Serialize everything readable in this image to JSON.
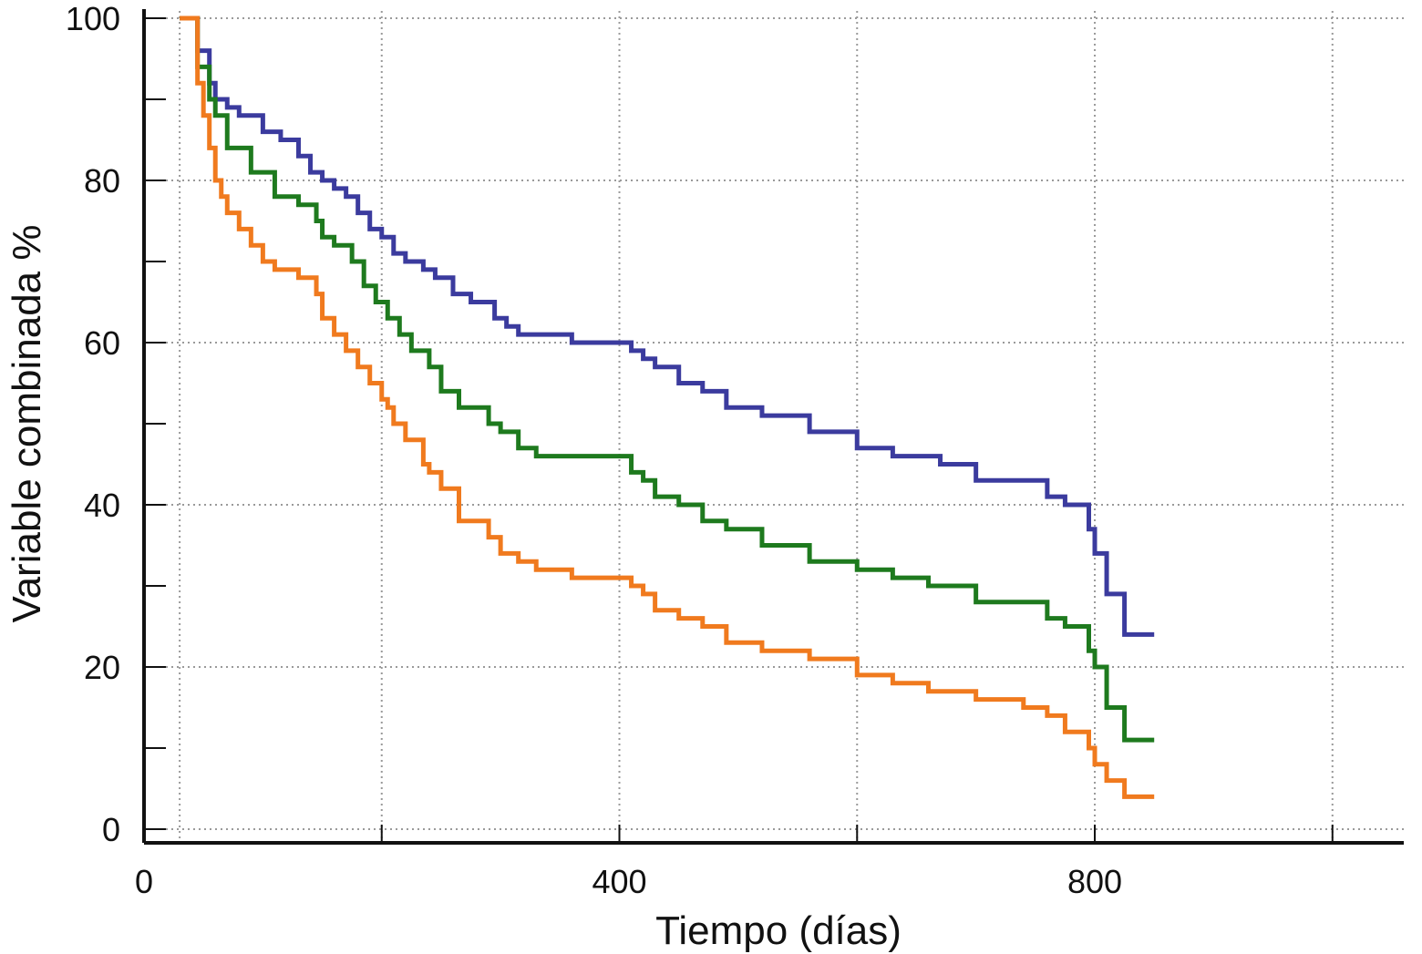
{
  "chart_data": {
    "type": "line",
    "step": true,
    "xlabel": "Tiempo (días)",
    "ylabel": "Variable combinada %",
    "xlim": [
      0,
      1060
    ],
    "ylim": [
      0,
      100
    ],
    "x_ticks": [
      0,
      400,
      800
    ],
    "x_tick_labels": [
      "0",
      "400",
      "800"
    ],
    "x_minor_ticks": [
      200,
      600,
      1000
    ],
    "x_gridlines": [
      30,
      200,
      400,
      600,
      800,
      1000
    ],
    "y_ticks": [
      0,
      20,
      40,
      60,
      80,
      100
    ],
    "y_tick_labels": [
      "0",
      "20",
      "40",
      "60",
      "80",
      "100"
    ],
    "y_minor_ticks": [
      10,
      30,
      50,
      70,
      90
    ],
    "grid": true,
    "legend": "none",
    "colors": [
      "#3b3b9e",
      "#1e7a1e",
      "#f07a1e"
    ],
    "series": [
      {
        "color": "#3b3b9e",
        "x": [
          30,
          45,
          55,
          60,
          70,
          80,
          100,
          115,
          130,
          140,
          150,
          160,
          170,
          180,
          190,
          200,
          210,
          220,
          235,
          245,
          260,
          275,
          295,
          305,
          315,
          330,
          360,
          400,
          410,
          420,
          430,
          450,
          470,
          490,
          520,
          560,
          600,
          630,
          670,
          700,
          740,
          760,
          775,
          795,
          800,
          810,
          825,
          850
        ],
        "y": [
          100,
          96,
          92,
          90,
          89,
          88,
          86,
          85,
          83,
          81,
          80,
          79,
          78,
          76,
          74,
          73,
          71,
          70,
          69,
          68,
          66,
          65,
          63,
          62,
          61,
          61,
          60,
          60,
          59,
          58,
          57,
          55,
          54,
          52,
          51,
          49,
          47,
          46,
          45,
          43,
          43,
          41,
          40,
          37,
          34,
          29,
          24,
          24
        ]
      },
      {
        "color": "#1e7a1e",
        "x": [
          30,
          45,
          55,
          60,
          70,
          90,
          110,
          130,
          145,
          150,
          160,
          175,
          185,
          195,
          205,
          215,
          225,
          240,
          250,
          265,
          290,
          300,
          315,
          330,
          360,
          400,
          410,
          420,
          430,
          450,
          470,
          490,
          520,
          560,
          600,
          630,
          660,
          700,
          740,
          760,
          775,
          795,
          800,
          810,
          825,
          850
        ],
        "y": [
          100,
          94,
          90,
          88,
          84,
          81,
          78,
          77,
          75,
          73,
          72,
          70,
          67,
          65,
          63,
          61,
          59,
          57,
          54,
          52,
          50,
          49,
          47,
          46,
          46,
          46,
          44,
          43,
          41,
          40,
          38,
          37,
          35,
          33,
          32,
          31,
          30,
          28,
          28,
          26,
          25,
          22,
          20,
          15,
          11,
          11
        ]
      },
      {
        "color": "#f07a1e",
        "x": [
          30,
          45,
          50,
          55,
          60,
          65,
          70,
          80,
          90,
          100,
          110,
          130,
          145,
          150,
          160,
          170,
          180,
          190,
          200,
          205,
          210,
          220,
          235,
          240,
          250,
          265,
          290,
          300,
          315,
          330,
          360,
          400,
          410,
          420,
          430,
          450,
          470,
          490,
          520,
          560,
          600,
          630,
          660,
          700,
          740,
          760,
          775,
          795,
          800,
          810,
          825,
          850
        ],
        "y": [
          100,
          92,
          88,
          84,
          80,
          78,
          76,
          74,
          72,
          70,
          69,
          68,
          66,
          63,
          61,
          59,
          57,
          55,
          53,
          52,
          50,
          48,
          45,
          44,
          42,
          38,
          36,
          34,
          33,
          32,
          31,
          31,
          30,
          29,
          27,
          26,
          25,
          23,
          22,
          21,
          19,
          18,
          17,
          16,
          15,
          14,
          12,
          10,
          8,
          6,
          4,
          4
        ]
      }
    ]
  }
}
